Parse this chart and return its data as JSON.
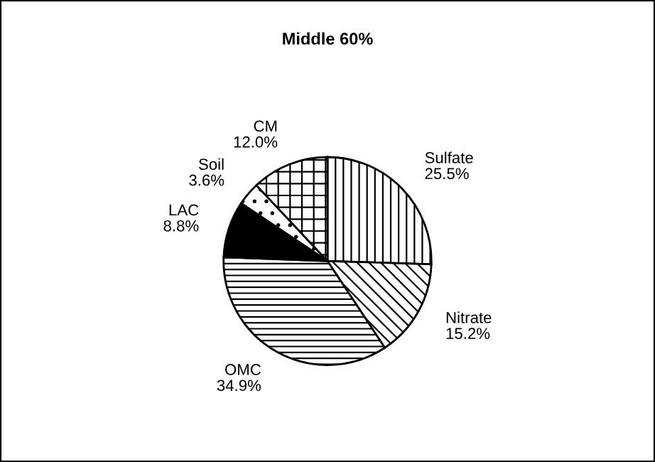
{
  "chart_data": {
    "type": "pie",
    "title": "Middle 60%",
    "categories": [
      "Sulfate",
      "Nitrate",
      "OMC",
      "LAC",
      "Soil",
      "CM"
    ],
    "values": [
      25.5,
      15.2,
      34.9,
      8.8,
      3.6,
      12.0
    ],
    "value_labels": [
      "25.5%",
      "15.2%",
      "34.9%",
      "8.8%",
      "3.6%",
      "12.0%"
    ],
    "colors": [
      "#ffffff",
      "#ffffff",
      "#ffffff",
      "#000000",
      "#ffffff",
      "#ffffff"
    ]
  }
}
